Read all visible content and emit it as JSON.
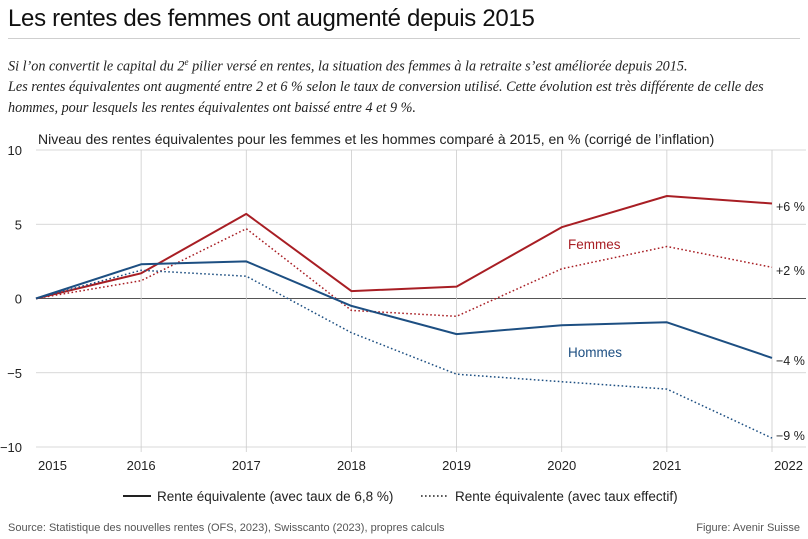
{
  "title": "Les rentes des femmes ont augmenté depuis 2015",
  "subtitle": {
    "part1": "Si l’on convertit le capital du 2",
    "sup": "e",
    "part2": " pilier versé en rentes, la situation des femmes à la retraite s’est améliorée depuis 2015.",
    "line2": "Les rentes équivalentes ont augmenté entre 2 et 6 % selon le taux de conversion utilisé. Cette évolution est très différente de celle des hommes, pour lesquels les rentes équivalentes ont baissé entre 4 et 9 %."
  },
  "source": "Source: Statistique des nouvelles rentes (OFS, 2023), Swisscanto (2023), propres calculs",
  "credit": "Figure: Avenir Suisse",
  "colors": {
    "femmes": "#a81e24",
    "hommes": "#1d4f82",
    "grid": "#cccccc",
    "zero": "#555555"
  },
  "chart_data": {
    "type": "line",
    "title": "Niveau des rentes équivalentes pour les femmes et les hommes comparé à 2015, en % (corrigé de l’inflation)",
    "x": [
      2015,
      2016,
      2017,
      2018,
      2019,
      2020,
      2021,
      2022
    ],
    "xticks": [
      "2015",
      "2016",
      "2017",
      "2018",
      "2019",
      "2020",
      "2021",
      "2022"
    ],
    "yticks": [
      "10",
      "5",
      "0",
      "−5",
      "−10"
    ],
    "ylim": [
      -10,
      10
    ],
    "grid": true,
    "group_labels": {
      "femmes": "Femmes",
      "hommes": "Hommes"
    },
    "end_labels": {
      "femmes_solid": "+6 %",
      "femmes_dotted": "+2 %",
      "hommes_solid": "−4 %",
      "hommes_dotted": "−9 %"
    },
    "series": [
      {
        "group": "femmes",
        "style": "solid",
        "values": [
          0,
          1.7,
          5.7,
          0.5,
          0.8,
          4.8,
          6.9,
          6.4
        ]
      },
      {
        "group": "femmes",
        "style": "dotted",
        "values": [
          0,
          1.2,
          4.7,
          -0.8,
          -1.2,
          2.0,
          3.5,
          2.1
        ]
      },
      {
        "group": "hommes",
        "style": "solid",
        "values": [
          0,
          2.3,
          2.5,
          -0.5,
          -2.4,
          -1.8,
          -1.6,
          -4.0
        ]
      },
      {
        "group": "hommes",
        "style": "dotted",
        "values": [
          0,
          1.9,
          1.5,
          -2.3,
          -5.1,
          -5.6,
          -6.1,
          -9.4
        ]
      }
    ],
    "legend": {
      "position": "bottom",
      "solid": "Rente équivalente (avec taux de 6,8 %)",
      "dotted": "Rente équivalente (avec taux effectif)"
    }
  }
}
